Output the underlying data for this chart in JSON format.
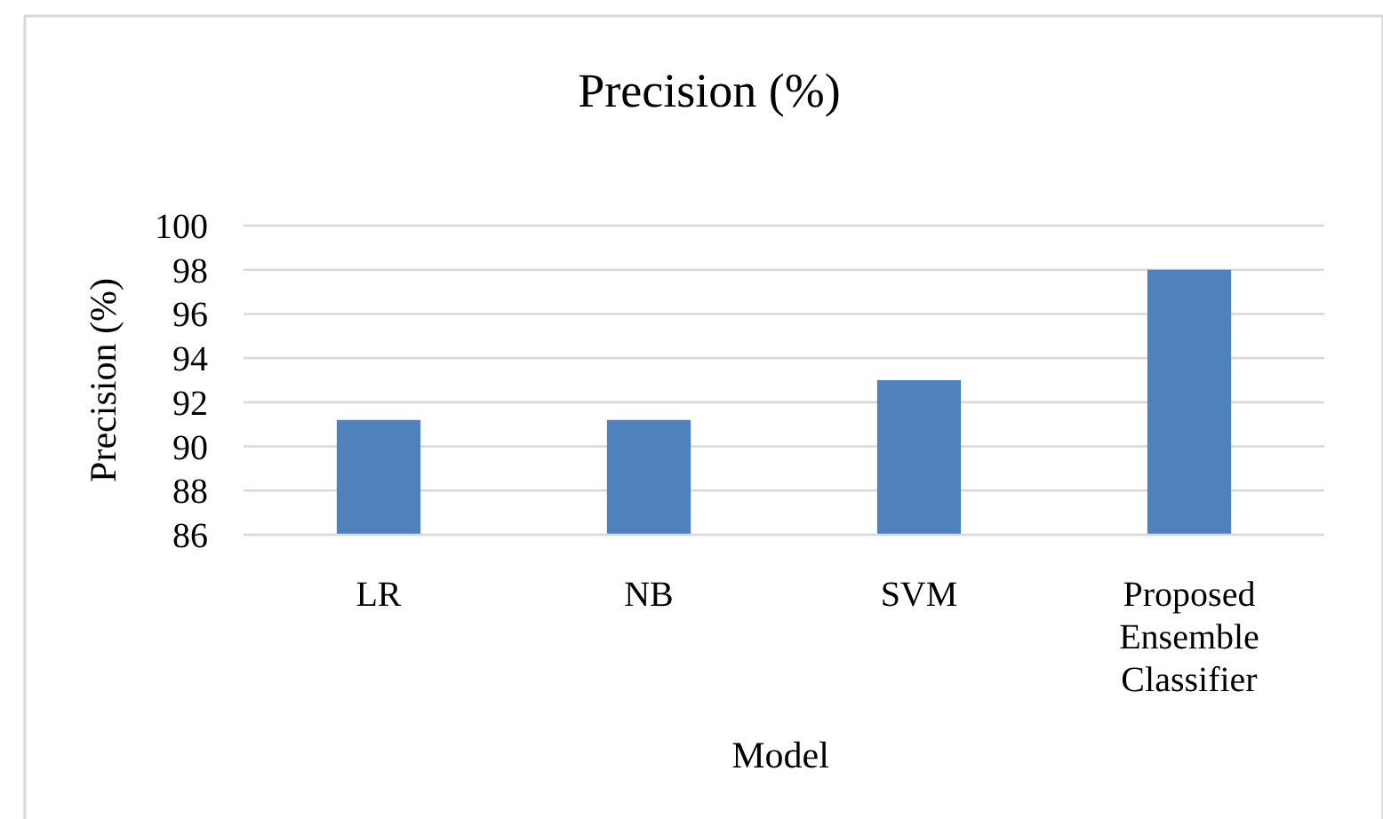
{
  "chart_data": {
    "type": "bar",
    "title": "Precision (%)",
    "xlabel": "Model",
    "ylabel": "Precision (%)",
    "categories": [
      "LR",
      "NB",
      "SVM",
      "Proposed Ensemble Classifier"
    ],
    "values": [
      91.2,
      91.2,
      93,
      98
    ],
    "color": "#4f81bd",
    "ylim": [
      86,
      100
    ],
    "yticks": [
      86,
      88,
      90,
      92,
      94,
      96,
      98,
      100
    ],
    "grid": "y"
  }
}
